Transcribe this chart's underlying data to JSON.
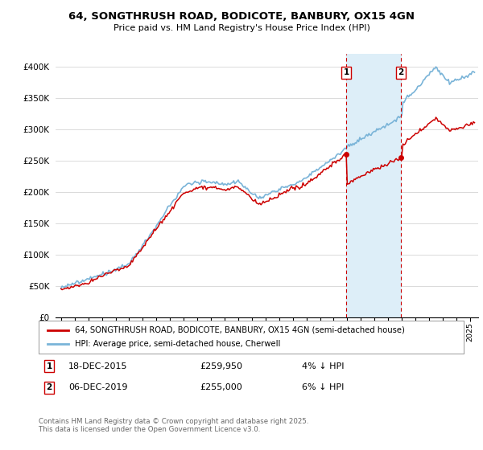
{
  "title": "64, SONGTHRUSH ROAD, BODICOTE, BANBURY, OX15 4GN",
  "subtitle": "Price paid vs. HM Land Registry's House Price Index (HPI)",
  "ylabel_ticks": [
    "£0",
    "£50K",
    "£100K",
    "£150K",
    "£200K",
    "£250K",
    "£300K",
    "£350K",
    "£400K"
  ],
  "ytick_values": [
    0,
    50000,
    100000,
    150000,
    200000,
    250000,
    300000,
    350000,
    400000
  ],
  "ylim": [
    0,
    420000
  ],
  "sale1_time": 2015.917,
  "sale2_time": 2019.917,
  "sale1_price": 259950,
  "sale2_price": 255000,
  "sale1": {
    "date": "18-DEC-2015",
    "price": 259950,
    "pct": "4% ↓ HPI"
  },
  "sale2": {
    "date": "06-DEC-2019",
    "price": 255000,
    "pct": "6% ↓ HPI"
  },
  "legend_property": "64, SONGTHRUSH ROAD, BODICOTE, BANBURY, OX15 4GN (semi-detached house)",
  "legend_hpi": "HPI: Average price, semi-detached house, Cherwell",
  "footnote": "Contains HM Land Registry data © Crown copyright and database right 2025.\nThis data is licensed under the Open Government Licence v3.0.",
  "property_color": "#cc0000",
  "hpi_color": "#7ab4d8",
  "shade_color": "#ddeef8",
  "sale_vline_color": "#cc0000",
  "background_color": "#ffffff",
  "grid_color": "#cccccc"
}
